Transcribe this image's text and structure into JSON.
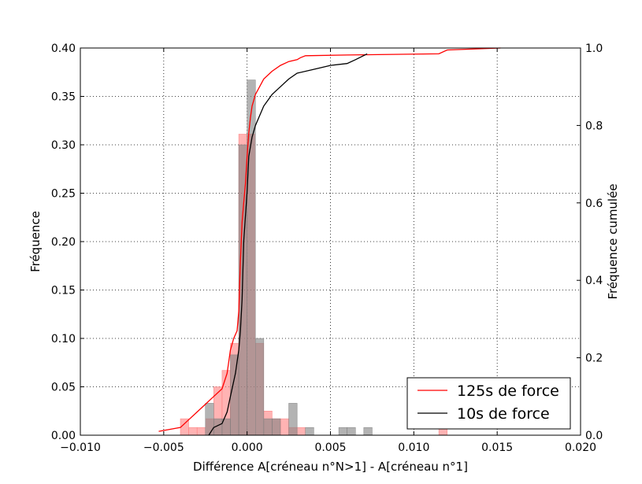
{
  "chart_data": {
    "type": "histogram",
    "xlabel": "Différence A[créneau n°N>1] - A[créneau n°1]",
    "ylabel_left": "Fréquence",
    "ylabel_right": "Fréquence cumulée",
    "xlim": [
      -0.01,
      0.02
    ],
    "ylim_left": [
      0.0,
      0.4
    ],
    "ylim_right": [
      0.0,
      1.0
    ],
    "x_ticks": [
      "−0.010",
      "−0.005",
      "0.000",
      "0.005",
      "0.010",
      "0.015",
      "0.020"
    ],
    "x_tick_values": [
      -0.01,
      -0.005,
      0.0,
      0.005,
      0.01,
      0.015,
      0.02
    ],
    "y_ticks_left": [
      "0.00",
      "0.05",
      "0.10",
      "0.15",
      "0.20",
      "0.25",
      "0.30",
      "0.35",
      "0.40"
    ],
    "y_tick_values_left": [
      0.0,
      0.05,
      0.1,
      0.15,
      0.2,
      0.25,
      0.3,
      0.35,
      0.4
    ],
    "y_ticks_right": [
      "0.0",
      "0.2",
      "0.4",
      "0.6",
      "0.8",
      "1.0"
    ],
    "y_tick_values_right": [
      0.0,
      0.2,
      0.4,
      0.6,
      0.8,
      1.0
    ],
    "grid": true,
    "legend_position": "bottom-right",
    "colors": {
      "series_125s": "#ff0000",
      "series_10s": "#000000",
      "hist_125s": "#ff8080",
      "hist_10s": "#808080"
    },
    "histograms": [
      {
        "name": "125s de force",
        "color": "#ff8080",
        "bin_width": 0.0005,
        "bins": [
          [
            -0.004,
            0.017
          ],
          [
            -0.0035,
            0.008
          ],
          [
            -0.003,
            0.008
          ],
          [
            -0.0025,
            0.017
          ],
          [
            -0.002,
            0.05
          ],
          [
            -0.0015,
            0.067
          ],
          [
            -0.001,
            0.095
          ],
          [
            -0.0005,
            0.311
          ],
          [
            0.0,
            0.311
          ],
          [
            0.0005,
            0.095
          ],
          [
            0.001,
            0.025
          ],
          [
            0.0015,
            0.017
          ],
          [
            0.002,
            0.017
          ],
          [
            0.0025,
            0.008
          ],
          [
            0.003,
            0.008
          ],
          [
            0.0115,
            0.008
          ]
        ]
      },
      {
        "name": "10s de force",
        "color": "#808080",
        "bin_width": 0.0005,
        "bins": [
          [
            -0.0025,
            0.033
          ],
          [
            -0.002,
            0.017
          ],
          [
            -0.0015,
            0.017
          ],
          [
            -0.001,
            0.083
          ],
          [
            -0.0005,
            0.3
          ],
          [
            0.0,
            0.367
          ],
          [
            0.0005,
            0.1
          ],
          [
            0.001,
            0.017
          ],
          [
            0.0015,
            0.017
          ],
          [
            0.0025,
            0.033
          ],
          [
            0.0035,
            0.008
          ],
          [
            0.0055,
            0.008
          ],
          [
            0.006,
            0.008
          ],
          [
            0.007,
            0.008
          ]
        ]
      }
    ],
    "series": [
      {
        "name": "125s de force",
        "color": "#ff0000",
        "axis": "right",
        "x": [
          -0.0053,
          -0.004,
          -0.0035,
          -0.003,
          -0.0025,
          -0.002,
          -0.0015,
          -0.0012,
          -0.001,
          -0.0008,
          -0.0006,
          -0.0005,
          -0.0004,
          -0.0003,
          -0.0002,
          -0.0001,
          0.0,
          0.0001,
          0.0002,
          0.0003,
          0.0005,
          0.001,
          0.0015,
          0.002,
          0.0025,
          0.003,
          0.0032,
          0.0035,
          0.006,
          0.0115,
          0.012,
          0.0152
        ],
        "y": [
          0.01,
          0.02,
          0.04,
          0.06,
          0.08,
          0.1,
          0.12,
          0.16,
          0.22,
          0.25,
          0.27,
          0.32,
          0.45,
          0.55,
          0.6,
          0.65,
          0.72,
          0.78,
          0.82,
          0.85,
          0.88,
          0.92,
          0.94,
          0.955,
          0.965,
          0.97,
          0.975,
          0.98,
          0.982,
          0.985,
          0.995,
          1.0
        ]
      },
      {
        "name": "10s de force",
        "color": "#000000",
        "axis": "right",
        "x": [
          -0.0023,
          -0.002,
          -0.0015,
          -0.0012,
          -0.001,
          -0.0007,
          -0.0005,
          -0.0004,
          -0.0003,
          -0.0002,
          0.0,
          0.0001,
          0.0003,
          0.0005,
          0.001,
          0.0015,
          0.002,
          0.0025,
          0.003,
          0.004,
          0.005,
          0.006,
          0.0065,
          0.0072
        ],
        "y": [
          0.0,
          0.02,
          0.03,
          0.06,
          0.1,
          0.16,
          0.22,
          0.27,
          0.35,
          0.5,
          0.63,
          0.72,
          0.77,
          0.8,
          0.85,
          0.88,
          0.9,
          0.92,
          0.935,
          0.945,
          0.955,
          0.96,
          0.97,
          0.985
        ]
      }
    ],
    "legend": [
      "125s de force",
      "10s de force"
    ]
  }
}
